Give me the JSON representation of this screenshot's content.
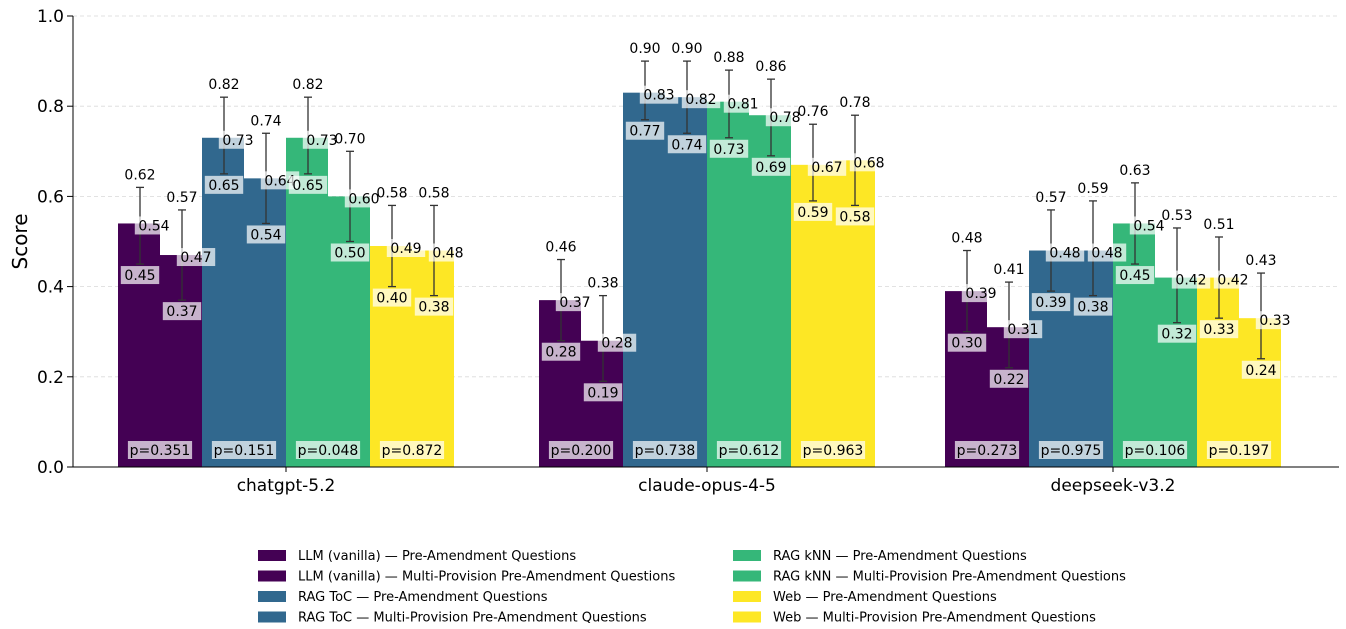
{
  "chart_data": {
    "type": "bar",
    "ylabel": "Score",
    "ylim": [
      0,
      1.0
    ],
    "yticks": [
      "0.0",
      "0.2",
      "0.4",
      "0.6",
      "0.8",
      "1.0"
    ],
    "grid": "horizontal dashed",
    "legend_position": "bottom-center",
    "categories": [
      "chatgpt-5.2",
      "claude-opus-4-5",
      "deepseek-v3.2"
    ],
    "methods": [
      {
        "name_pre": "LLM (vanilla) — Pre-Amendment Questions",
        "name_multi": "LLM (vanilla) — Multi-Provision Pre-Amendment Questions",
        "color": "#440154",
        "pre": [
          {
            "value": 0.54,
            "lo": 0.45,
            "hi": 0.62
          },
          {
            "value": 0.37,
            "lo": 0.28,
            "hi": 0.46
          },
          {
            "value": 0.39,
            "lo": 0.3,
            "hi": 0.48
          }
        ],
        "multi": [
          {
            "value": 0.47,
            "lo": 0.37,
            "hi": 0.57
          },
          {
            "value": 0.28,
            "lo": 0.19,
            "hi": 0.38
          },
          {
            "value": 0.31,
            "lo": 0.22,
            "hi": 0.41
          }
        ],
        "p": [
          "p=0.351",
          "p=0.200",
          "p=0.273"
        ]
      },
      {
        "name_pre": "RAG ToC — Pre-Amendment Questions",
        "name_multi": "RAG ToC — Multi-Provision Pre-Amendment Questions",
        "color": "#31688e",
        "pre": [
          {
            "value": 0.73,
            "lo": 0.65,
            "hi": 0.82
          },
          {
            "value": 0.83,
            "lo": 0.77,
            "hi": 0.9
          },
          {
            "value": 0.48,
            "lo": 0.39,
            "hi": 0.57
          }
        ],
        "multi": [
          {
            "value": 0.64,
            "lo": 0.54,
            "hi": 0.74
          },
          {
            "value": 0.82,
            "lo": 0.74,
            "hi": 0.9
          },
          {
            "value": 0.48,
            "lo": 0.38,
            "hi": 0.59
          }
        ],
        "p": [
          "p=0.151",
          "p=0.738",
          "p=0.975"
        ]
      },
      {
        "name_pre": "RAG kNN — Pre-Amendment Questions",
        "name_multi": "RAG kNN — Multi-Provision Pre-Amendment Questions",
        "color": "#35b779",
        "pre": [
          {
            "value": 0.73,
            "lo": 0.65,
            "hi": 0.82
          },
          {
            "value": 0.81,
            "lo": 0.73,
            "hi": 0.88
          },
          {
            "value": 0.54,
            "lo": 0.45,
            "hi": 0.63
          }
        ],
        "multi": [
          {
            "value": 0.6,
            "lo": 0.5,
            "hi": 0.7
          },
          {
            "value": 0.78,
            "lo": 0.69,
            "hi": 0.86
          },
          {
            "value": 0.42,
            "lo": 0.32,
            "hi": 0.53
          }
        ],
        "p": [
          "p=0.048",
          "p=0.612",
          "p=0.106"
        ]
      },
      {
        "name_pre": "Web — Pre-Amendment Questions",
        "name_multi": "Web — Multi-Provision Pre-Amendment Questions",
        "color": "#fde725",
        "pre": [
          {
            "value": 0.49,
            "lo": 0.4,
            "hi": 0.58
          },
          {
            "value": 0.67,
            "lo": 0.59,
            "hi": 0.76
          },
          {
            "value": 0.42,
            "lo": 0.33,
            "hi": 0.51
          }
        ],
        "multi": [
          {
            "value": 0.48,
            "lo": 0.38,
            "hi": 0.58
          },
          {
            "value": 0.68,
            "lo": 0.58,
            "hi": 0.78
          },
          {
            "value": 0.33,
            "lo": 0.24,
            "hi": 0.43
          }
        ],
        "p": [
          "p=0.872",
          "p=0.963",
          "p=0.197"
        ]
      }
    ]
  }
}
